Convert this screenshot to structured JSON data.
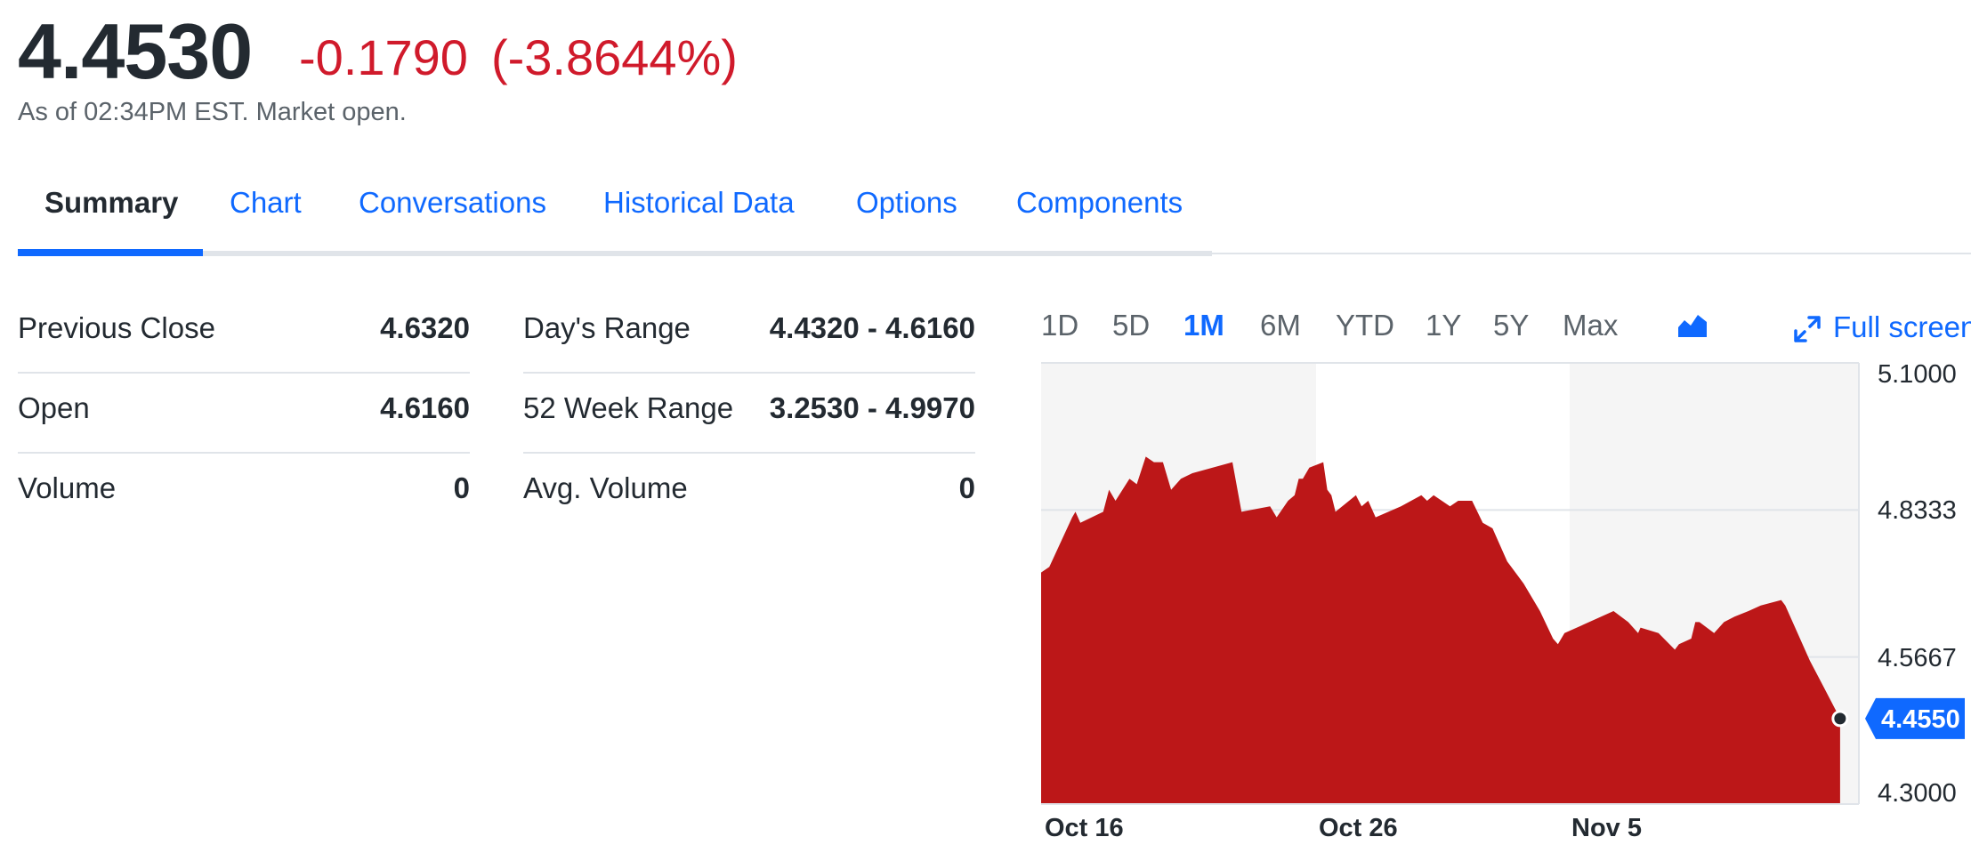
{
  "quote": {
    "price": "4.4530",
    "change": "-0.1790",
    "change_pct": "(-3.8644%)",
    "as_of": "As of 02:34PM EST. Market open."
  },
  "tabs": [
    {
      "label": "Summary",
      "active": true
    },
    {
      "label": "Chart"
    },
    {
      "label": "Conversations"
    },
    {
      "label": "Historical Data"
    },
    {
      "label": "Options"
    },
    {
      "label": "Components"
    }
  ],
  "stats": {
    "left": [
      {
        "label": "Previous Close",
        "value": "4.6320"
      },
      {
        "label": "Open",
        "value": "4.6160"
      },
      {
        "label": "Volume",
        "value": "0"
      }
    ],
    "right": [
      {
        "label": "Day's Range",
        "value": "4.4320 - 4.6160"
      },
      {
        "label": "52 Week Range",
        "value": "3.2530 - 4.9970"
      },
      {
        "label": "Avg. Volume",
        "value": "0"
      }
    ]
  },
  "chart_controls": {
    "ranges": [
      "1D",
      "5D",
      "1M",
      "6M",
      "YTD",
      "1Y",
      "5Y",
      "Max"
    ],
    "active_range": "1M",
    "chart_type_icon": "area-chart-icon",
    "fullscreen_icon": "expand-icon",
    "fullscreen_label": "Full screen"
  },
  "colors": {
    "accent": "#0f69ff",
    "negative": "#d01a2b",
    "area_fill": "#bc1718",
    "shade": "#f5f5f5"
  },
  "chart_data": {
    "type": "area",
    "ylim": [
      4.3,
      5.1
    ],
    "yticks": [
      "5.1000",
      "4.8333",
      "4.5667",
      "4.3000"
    ],
    "xticks": [
      "Oct 16",
      "Oct 26",
      "Nov 5"
    ],
    "grid": true,
    "current_value": "4.4550",
    "series": [
      {
        "values": [
          [
            0.0,
            4.72
          ],
          [
            0.01,
            4.73
          ],
          [
            0.038,
            4.82
          ],
          [
            0.042,
            4.83
          ],
          [
            0.048,
            4.81
          ],
          [
            0.076,
            4.83
          ],
          [
            0.083,
            4.87
          ],
          [
            0.091,
            4.85
          ],
          [
            0.108,
            4.89
          ],
          [
            0.117,
            4.88
          ],
          [
            0.128,
            4.93
          ],
          [
            0.138,
            4.92
          ],
          [
            0.149,
            4.92
          ],
          [
            0.159,
            4.87
          ],
          [
            0.171,
            4.89
          ],
          [
            0.185,
            4.9
          ],
          [
            0.234,
            4.92
          ],
          [
            0.245,
            4.83
          ],
          [
            0.28,
            4.84
          ],
          [
            0.288,
            4.82
          ],
          [
            0.302,
            4.85
          ],
          [
            0.31,
            4.86
          ],
          [
            0.315,
            4.89
          ],
          [
            0.32,
            4.89
          ],
          [
            0.328,
            4.91
          ],
          [
            0.345,
            4.92
          ],
          [
            0.35,
            4.87
          ],
          [
            0.355,
            4.86
          ],
          [
            0.36,
            4.83
          ],
          [
            0.385,
            4.86
          ],
          [
            0.392,
            4.84
          ],
          [
            0.4,
            4.85
          ],
          [
            0.409,
            4.82
          ],
          [
            0.44,
            4.84
          ],
          [
            0.465,
            4.86
          ],
          [
            0.472,
            4.85
          ],
          [
            0.48,
            4.86
          ],
          [
            0.5,
            4.84
          ],
          [
            0.51,
            4.85
          ],
          [
            0.527,
            4.85
          ],
          [
            0.54,
            4.81
          ],
          [
            0.552,
            4.8
          ],
          [
            0.57,
            4.74
          ],
          [
            0.59,
            4.7
          ],
          [
            0.61,
            4.65
          ],
          [
            0.626,
            4.6
          ],
          [
            0.632,
            4.59
          ],
          [
            0.64,
            4.61
          ],
          [
            0.7,
            4.65
          ],
          [
            0.718,
            4.63
          ],
          [
            0.73,
            4.61
          ],
          [
            0.733,
            4.62
          ],
          [
            0.755,
            4.61
          ],
          [
            0.775,
            4.58
          ],
          [
            0.78,
            4.59
          ],
          [
            0.795,
            4.6
          ],
          [
            0.8,
            4.63
          ],
          [
            0.805,
            4.63
          ],
          [
            0.823,
            4.61
          ],
          [
            0.835,
            4.63
          ],
          [
            0.848,
            4.64
          ],
          [
            0.865,
            4.65
          ],
          [
            0.88,
            4.66
          ],
          [
            0.905,
            4.67
          ],
          [
            0.91,
            4.66
          ],
          [
            0.925,
            4.61
          ],
          [
            0.94,
            4.56
          ],
          [
            0.956,
            4.515
          ],
          [
            0.977,
            4.455
          ]
        ]
      }
    ]
  }
}
